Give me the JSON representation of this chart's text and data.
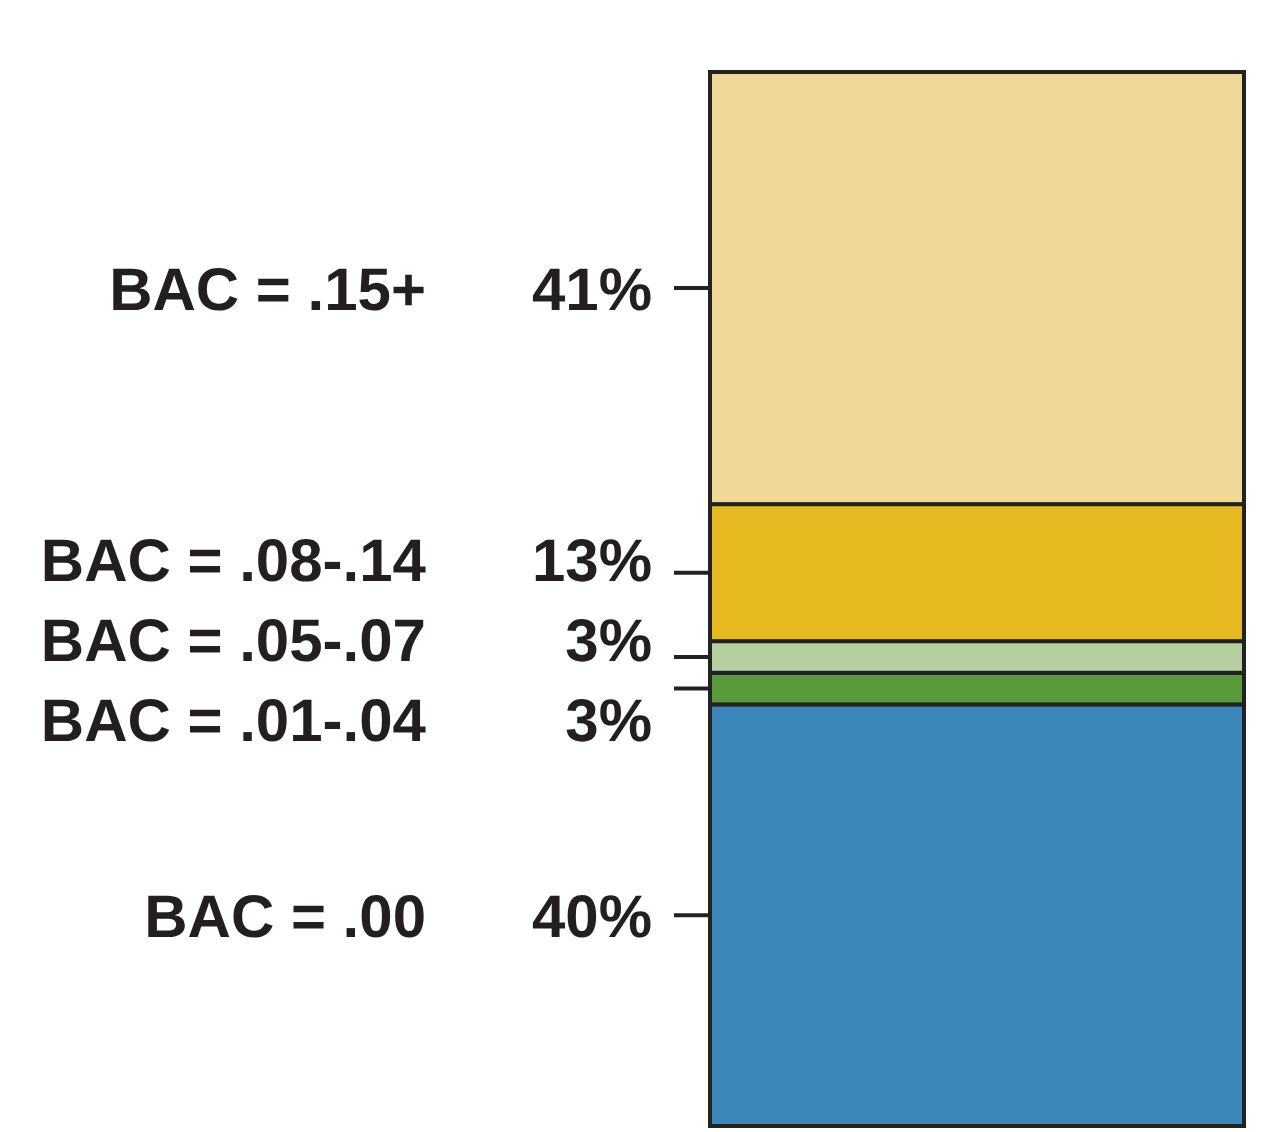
{
  "chart_data": {
    "type": "bar",
    "stacked": true,
    "categories": [
      null
    ],
    "series": [
      {
        "color": "#3b87bb",
        "values": [
          40
        ],
        "value_labels": [
          "40%"
        ]
      },
      {
        "color": "#5a9b3c",
        "values": [
          3
        ],
        "value_labels": [
          "3%"
        ]
      },
      {
        "color": "#b6cfa0",
        "values": [
          3
        ],
        "value_labels": [
          "3%"
        ]
      },
      {
        "color": "#e6b920",
        "values": [
          13
        ],
        "value_labels": [
          "13%"
        ]
      },
      {
        "color": "#f0d896",
        "values": [
          41
        ],
        "value_labels": [
          "41%"
        ]
      }
    ],
    "annotations": [
      "BAC = .00",
      "BAC = .01-.04",
      "BAC = .05-.07",
      "BAC = .08-.14",
      "BAC = .15+"
    ]
  }
}
